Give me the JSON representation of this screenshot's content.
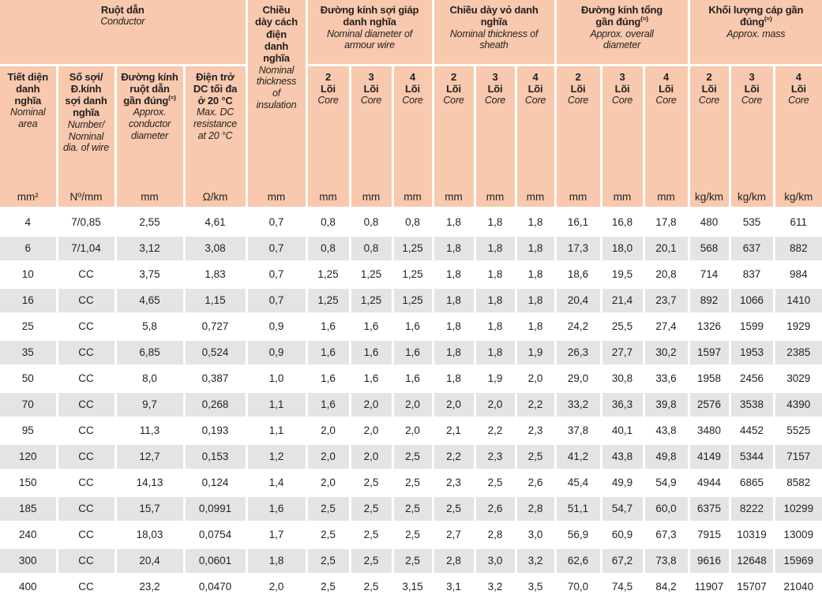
{
  "colors": {
    "header_bg": "#f8c9ae",
    "row_alt_bg": "#e4e4e4",
    "text": "#231f20"
  },
  "table": {
    "groups": [
      {
        "vn": "Ruột dẫn",
        "en": "Conductor"
      },
      {
        "vn": "Chiều dày cách điện danh nghĩa",
        "en": "Nominal thickness of insulation"
      },
      {
        "vn": "Đường kính sợi giáp danh nghĩa",
        "en": "Nominal diameter of armour wire"
      },
      {
        "vn": "Chiều dày vỏ danh nghĩa",
        "en": "Nominal thickness of sheath"
      },
      {
        "vn": "Đường kính tổng gần đúng",
        "sup": "(≈)",
        "en": "Approx. overall diameter"
      },
      {
        "vn": "Khối lượng cáp gần đúng",
        "sup": "(≈)",
        "en": "Approx. mass"
      }
    ],
    "subheaders": [
      {
        "vn": "Tiết diện danh nghĩa",
        "en": "Nominal area"
      },
      {
        "vn": "Số sợi/ Đ.kính sợi danh nghĩa",
        "en": "Number/ Nominal dia. of wire"
      },
      {
        "vn": "Đường kính ruột dẫn gần đúng",
        "sup": "(≈)",
        "en": "Approx. conductor diameter"
      },
      {
        "vn": "Điện trở DC tối đa ở 20 °C",
        "en": "Max. DC resistance at 20 °C"
      }
    ],
    "core_cols": [
      {
        "num": "2",
        "vn": "Lõi",
        "en": "Core"
      },
      {
        "num": "3",
        "vn": "Lõi",
        "en": "Core"
      },
      {
        "num": "4",
        "vn": "Lõi",
        "en": "Core"
      },
      {
        "num": "2",
        "vn": "Lõi",
        "en": "Core"
      },
      {
        "num": "3",
        "vn": "Lõi",
        "en": "Core"
      },
      {
        "num": "4",
        "vn": "Lõi",
        "en": "Core"
      },
      {
        "num": "2",
        "vn": "Lõi",
        "en": "Core"
      },
      {
        "num": "3",
        "vn": "Lõi",
        "en": "Core"
      },
      {
        "num": "4",
        "vn": "Lõi",
        "en": "Core"
      },
      {
        "num": "2",
        "vn": "Lõi",
        "en": "Core"
      },
      {
        "num": "3",
        "vn": "Lõi",
        "en": "Core"
      },
      {
        "num": "4",
        "vn": "Lõi",
        "en": "Core"
      }
    ],
    "units": [
      "mm²",
      "Nº/mm",
      "mm",
      "Ω/km",
      "mm",
      "mm",
      "mm",
      "mm",
      "mm",
      "mm",
      "mm",
      "mm",
      "mm",
      "mm",
      "kg/km",
      "kg/km",
      "kg/km"
    ],
    "rows": [
      [
        "4",
        "7/0,85",
        "2,55",
        "4,61",
        "0,7",
        "0,8",
        "0,8",
        "0,8",
        "1,8",
        "1,8",
        "1,8",
        "16,1",
        "16,8",
        "17,8",
        "480",
        "535",
        "611"
      ],
      [
        "6",
        "7/1,04",
        "3,12",
        "3,08",
        "0,7",
        "0,8",
        "0,8",
        "1,25",
        "1,8",
        "1,8",
        "1,8",
        "17,3",
        "18,0",
        "20,1",
        "568",
        "637",
        "882"
      ],
      [
        "10",
        "CC",
        "3,75",
        "1,83",
        "0,7",
        "1,25",
        "1,25",
        "1,25",
        "1,8",
        "1,8",
        "1,8",
        "18,6",
        "19,5",
        "20,8",
        "714",
        "837",
        "984"
      ],
      [
        "16",
        "CC",
        "4,65",
        "1,15",
        "0,7",
        "1,25",
        "1,25",
        "1,25",
        "1,8",
        "1,8",
        "1,8",
        "20,4",
        "21,4",
        "23,7",
        "892",
        "1066",
        "1410"
      ],
      [
        "25",
        "CC",
        "5,8",
        "0,727",
        "0,9",
        "1,6",
        "1,6",
        "1,6",
        "1,8",
        "1,8",
        "1,8",
        "24,2",
        "25,5",
        "27,4",
        "1326",
        "1599",
        "1929"
      ],
      [
        "35",
        "CC",
        "6,85",
        "0,524",
        "0,9",
        "1,6",
        "1,6",
        "1,6",
        "1,8",
        "1,8",
        "1,9",
        "26,3",
        "27,7",
        "30,2",
        "1597",
        "1953",
        "2385"
      ],
      [
        "50",
        "CC",
        "8,0",
        "0,387",
        "1,0",
        "1,6",
        "1,6",
        "1,6",
        "1,8",
        "1,9",
        "2,0",
        "29,0",
        "30,8",
        "33,6",
        "1958",
        "2456",
        "3029"
      ],
      [
        "70",
        "CC",
        "9,7",
        "0,268",
        "1,1",
        "1,6",
        "2,0",
        "2,0",
        "2,0",
        "2,0",
        "2,2",
        "33,2",
        "36,3",
        "39,8",
        "2576",
        "3538",
        "4390"
      ],
      [
        "95",
        "CC",
        "11,3",
        "0,193",
        "1,1",
        "2,0",
        "2,0",
        "2,0",
        "2,1",
        "2,2",
        "2,3",
        "37,8",
        "40,1",
        "43,8",
        "3480",
        "4452",
        "5525"
      ],
      [
        "120",
        "CC",
        "12,7",
        "0,153",
        "1,2",
        "2,0",
        "2,0",
        "2,5",
        "2,2",
        "2,3",
        "2,5",
        "41,2",
        "43,8",
        "49,8",
        "4149",
        "5344",
        "7157"
      ],
      [
        "150",
        "CC",
        "14,13",
        "0,124",
        "1,4",
        "2,0",
        "2,5",
        "2,5",
        "2,3",
        "2,5",
        "2,6",
        "45,4",
        "49,9",
        "54,9",
        "4944",
        "6865",
        "8582"
      ],
      [
        "185",
        "CC",
        "15,7",
        "0,0991",
        "1,6",
        "2,5",
        "2,5",
        "2,5",
        "2,5",
        "2,6",
        "2,8",
        "51,1",
        "54,7",
        "60,0",
        "6375",
        "8222",
        "10299"
      ],
      [
        "240",
        "CC",
        "18,03",
        "0,0754",
        "1,7",
        "2,5",
        "2,5",
        "2,5",
        "2,7",
        "2,8",
        "3,0",
        "56,9",
        "60,9",
        "67,3",
        "7915",
        "10319",
        "13009"
      ],
      [
        "300",
        "CC",
        "20,4",
        "0,0601",
        "1,8",
        "2,5",
        "2,5",
        "2,5",
        "2,8",
        "3,0",
        "3,2",
        "62,6",
        "67,2",
        "73,8",
        "9616",
        "12648",
        "15969"
      ],
      [
        "400",
        "CC",
        "23,2",
        "0,0470",
        "2,0",
        "2,5",
        "2,5",
        "3,15",
        "3,1",
        "3,2",
        "3,5",
        "70,0",
        "74,5",
        "84,2",
        "11907",
        "15707",
        "21040"
      ]
    ]
  }
}
